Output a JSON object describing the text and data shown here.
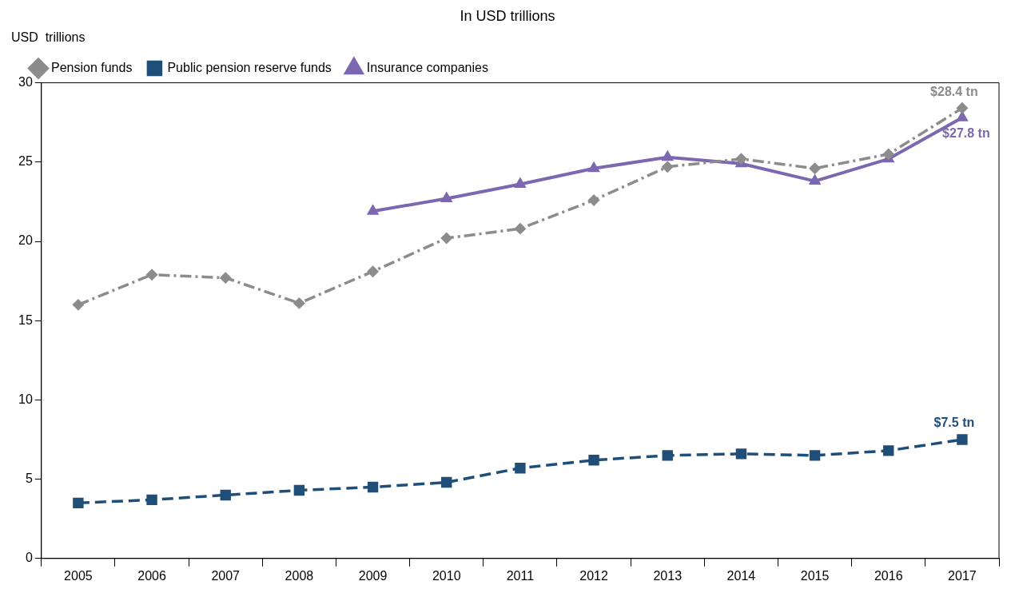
{
  "chart_data": {
    "type": "line",
    "title": "In USD trillions",
    "ylabel": "USD  trillions",
    "categories": [
      "2005",
      "2006",
      "2007",
      "2008",
      "2009",
      "2010",
      "2011",
      "2012",
      "2013",
      "2014",
      "2015",
      "2016",
      "2017"
    ],
    "series": [
      {
        "name": "Pension funds",
        "color": "#8c8c8c",
        "marker": "diamond",
        "line_style": "dashdot",
        "values": [
          16.0,
          17.9,
          17.7,
          16.1,
          18.1,
          20.2,
          20.8,
          22.6,
          24.7,
          25.2,
          24.6,
          25.5,
          28.4
        ]
      },
      {
        "name": "Public pension reserve funds",
        "color": "#1f4e79",
        "marker": "square",
        "line_style": "dashed",
        "values": [
          3.5,
          3.7,
          4.0,
          4.3,
          4.5,
          4.8,
          5.7,
          6.2,
          6.5,
          6.6,
          6.5,
          6.8,
          7.5
        ]
      },
      {
        "name": "Insurance companies",
        "color": "#7b68b0",
        "marker": "triangle",
        "line_style": "solid",
        "values": [
          null,
          null,
          null,
          null,
          21.9,
          22.7,
          23.6,
          24.6,
          25.3,
          24.9,
          23.8,
          25.2,
          27.8
        ]
      }
    ],
    "ylim": [
      0,
      30
    ],
    "yticks": [
      0,
      5,
      10,
      15,
      20,
      25,
      30
    ],
    "grid": false,
    "legend": "top left",
    "annotations": [
      {
        "text": "$28.4 tn",
        "x": "2017",
        "y": 28.4
      },
      {
        "text": "$27.8 tn",
        "x": "2017",
        "y": 27.8
      },
      {
        "text": "$7.5 tn",
        "x": "2017",
        "y": 7.5
      }
    ]
  }
}
